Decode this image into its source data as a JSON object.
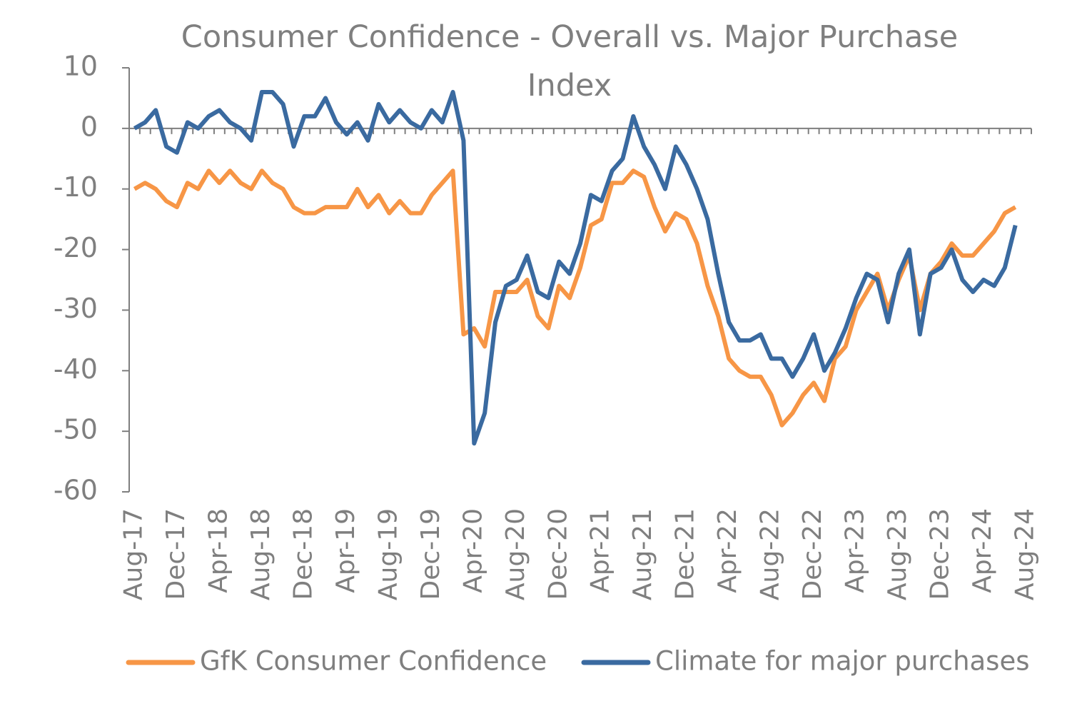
{
  "chart_data": {
    "type": "line",
    "title": "Consumer Confidence - Overall vs. Major Purchase Index",
    "categories": [
      "Aug-17",
      null,
      null,
      null,
      "Dec-17",
      null,
      null,
      null,
      "Apr-18",
      null,
      null,
      null,
      "Aug-18",
      null,
      null,
      null,
      "Dec-18",
      null,
      null,
      null,
      "Apr-19",
      null,
      null,
      null,
      "Aug-19",
      null,
      null,
      null,
      "Dec-19",
      null,
      null,
      null,
      "Apr-20",
      null,
      null,
      null,
      "Aug-20",
      null,
      null,
      null,
      "Dec-20",
      null,
      null,
      null,
      "Apr-21",
      null,
      null,
      null,
      "Aug-21",
      null,
      null,
      null,
      "Dec-21",
      null,
      null,
      null,
      "Apr-22",
      null,
      null,
      null,
      "Aug-22",
      null,
      null,
      null,
      "Dec-22",
      null,
      null,
      null,
      "Apr-23",
      null,
      null,
      null,
      "Aug-23",
      null,
      null,
      null,
      "Dec-23",
      null,
      null,
      null,
      "Apr-24",
      null,
      null,
      null,
      "Aug-24"
    ],
    "series": [
      {
        "name": "GfK Consumer Confidence",
        "color": "#f79646",
        "values": [
          -10,
          -9,
          -10,
          -12,
          -13,
          -9,
          -10,
          -7,
          -9,
          -7,
          -9,
          -10,
          -7,
          -9,
          -10,
          -13,
          -14,
          -14,
          -13,
          -13,
          -13,
          -10,
          -13,
          -11,
          -14,
          -12,
          -14,
          -14,
          -11,
          -9,
          -7,
          -34,
          -33,
          -36,
          -27,
          -27,
          -27,
          -25,
          -31,
          -33,
          -26,
          -28,
          -23,
          -16,
          -15,
          -9,
          -9,
          -7,
          -8,
          -13,
          -17,
          -14,
          -15,
          -19,
          -26,
          -31,
          -38,
          -40,
          -41,
          -41,
          -44,
          -49,
          -47,
          -44,
          -42,
          -45,
          -38,
          -36,
          -30,
          -27,
          -24,
          -30,
          -25,
          -21,
          -30,
          -24,
          -22,
          -19,
          -21,
          -21,
          -19,
          -17,
          -14,
          -13,
          null
        ]
      },
      {
        "name": "Climate for major purchases",
        "color": "#3a6aa0",
        "values": [
          0,
          1,
          3,
          -3,
          -4,
          1,
          0,
          2,
          3,
          1,
          0,
          -2,
          6,
          6,
          4,
          -3,
          2,
          2,
          5,
          1,
          -1,
          1,
          -2,
          4,
          1,
          3,
          1,
          0,
          3,
          1,
          6,
          -2,
          -52,
          -47,
          -32,
          -26,
          -25,
          -21,
          -27,
          -28,
          -22,
          -24,
          -19,
          -11,
          -12,
          -7,
          -5,
          2,
          -3,
          -6,
          -10,
          -3,
          -6,
          -10,
          -15,
          -24,
          -32,
          -35,
          -35,
          -34,
          -38,
          -38,
          -41,
          -38,
          -34,
          -40,
          -37,
          -33,
          -28,
          -24,
          -25,
          -32,
          -24,
          -20,
          -34,
          -24,
          -23,
          -20,
          -25,
          -27,
          -25,
          -26,
          -23,
          -16,
          null
        ]
      }
    ],
    "ylim": [
      -60,
      10
    ],
    "yticks": [
      -60,
      -50,
      -40,
      -30,
      -20,
      -10,
      0,
      10
    ],
    "grid": false
  }
}
